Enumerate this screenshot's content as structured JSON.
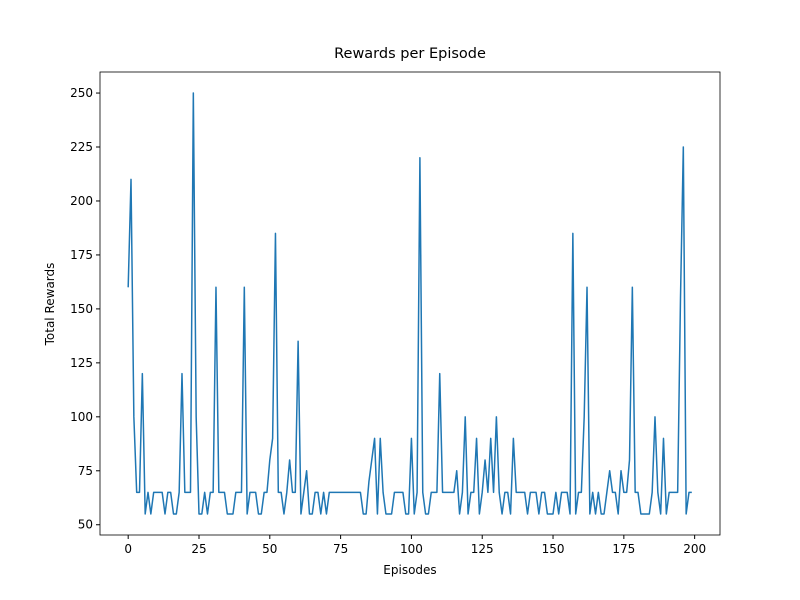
{
  "chart_data": {
    "type": "line",
    "title": "Rewards per Episode",
    "x_label": "Episodes",
    "y_label": "Total Rewards",
    "x": [
      0,
      1,
      2,
      3,
      4,
      5,
      6,
      7,
      8,
      9,
      10,
      11,
      12,
      13,
      14,
      15,
      16,
      17,
      18,
      19,
      20,
      21,
      22,
      23,
      24,
      25,
      26,
      27,
      28,
      29,
      30,
      31,
      32,
      33,
      34,
      35,
      36,
      37,
      38,
      39,
      40,
      41,
      42,
      43,
      44,
      45,
      46,
      47,
      48,
      49,
      50,
      51,
      52,
      53,
      54,
      55,
      56,
      57,
      58,
      59,
      60,
      61,
      62,
      63,
      64,
      65,
      66,
      67,
      68,
      69,
      70,
      71,
      72,
      73,
      74,
      75,
      76,
      77,
      78,
      79,
      80,
      81,
      82,
      83,
      84,
      85,
      86,
      87,
      88,
      89,
      90,
      91,
      92,
      93,
      94,
      95,
      96,
      97,
      98,
      99,
      100,
      101,
      102,
      103,
      104,
      105,
      106,
      107,
      108,
      109,
      110,
      111,
      112,
      113,
      114,
      115,
      116,
      117,
      118,
      119,
      120,
      121,
      122,
      123,
      124,
      125,
      126,
      127,
      128,
      129,
      130,
      131,
      132,
      133,
      134,
      135,
      136,
      137,
      138,
      139,
      140,
      141,
      142,
      143,
      144,
      145,
      146,
      147,
      148,
      149,
      150,
      151,
      152,
      153,
      154,
      155,
      156,
      157,
      158,
      159,
      160,
      161,
      162,
      163,
      164,
      165,
      166,
      167,
      168,
      169,
      170,
      171,
      172,
      173,
      174,
      175,
      176,
      177,
      178,
      179,
      180,
      181,
      182,
      183,
      184,
      185,
      186,
      187,
      188,
      189,
      190,
      191,
      192,
      193,
      194,
      195,
      196,
      197,
      198,
      199
    ],
    "series": [
      {
        "color": "#1f77b4",
        "values": [
          160,
          210,
          100,
          65,
          65,
          120,
          55,
          65,
          55,
          65,
          65,
          65,
          65,
          55,
          65,
          65,
          55,
          55,
          65,
          120,
          65,
          65,
          65,
          250,
          100,
          55,
          55,
          65,
          55,
          65,
          65,
          160,
          65,
          65,
          65,
          55,
          55,
          55,
          65,
          65,
          65,
          160,
          55,
          65,
          65,
          65,
          55,
          55,
          65,
          65,
          80,
          90,
          185,
          65,
          65,
          55,
          65,
          80,
          65,
          65,
          135,
          55,
          65,
          75,
          55,
          55,
          65,
          65,
          55,
          65,
          55,
          65,
          65,
          65,
          65,
          65,
          65,
          65,
          65,
          65,
          65,
          65,
          65,
          55,
          55,
          70,
          80,
          90,
          55,
          90,
          65,
          55,
          55,
          55,
          65,
          65,
          65,
          65,
          55,
          55,
          90,
          55,
          65,
          220,
          65,
          55,
          55,
          65,
          65,
          65,
          120,
          65,
          65,
          65,
          65,
          65,
          75,
          55,
          65,
          100,
          55,
          65,
          65,
          90,
          55,
          65,
          80,
          65,
          90,
          65,
          100,
          65,
          55,
          65,
          65,
          55,
          90,
          65,
          65,
          65,
          65,
          55,
          65,
          65,
          65,
          55,
          65,
          65,
          55,
          55,
          55,
          65,
          55,
          65,
          65,
          65,
          55,
          185,
          55,
          65,
          65,
          100,
          160,
          55,
          65,
          55,
          65,
          55,
          55,
          65,
          75,
          65,
          65,
          55,
          75,
          65,
          65,
          80,
          160,
          65,
          65,
          55,
          55,
          55,
          55,
          65,
          100,
          65,
          55,
          90,
          55,
          65,
          65,
          65,
          65,
          155,
          225,
          55,
          65,
          65
        ]
      }
    ],
    "xlim": [
      -9.95,
      208.95
    ],
    "ylim": [
      45.25,
      259.75
    ],
    "xticks": [
      0,
      25,
      50,
      75,
      100,
      125,
      150,
      175,
      200
    ],
    "yticks": [
      50,
      75,
      100,
      125,
      150,
      175,
      200,
      225,
      250
    ],
    "grid": false
  }
}
